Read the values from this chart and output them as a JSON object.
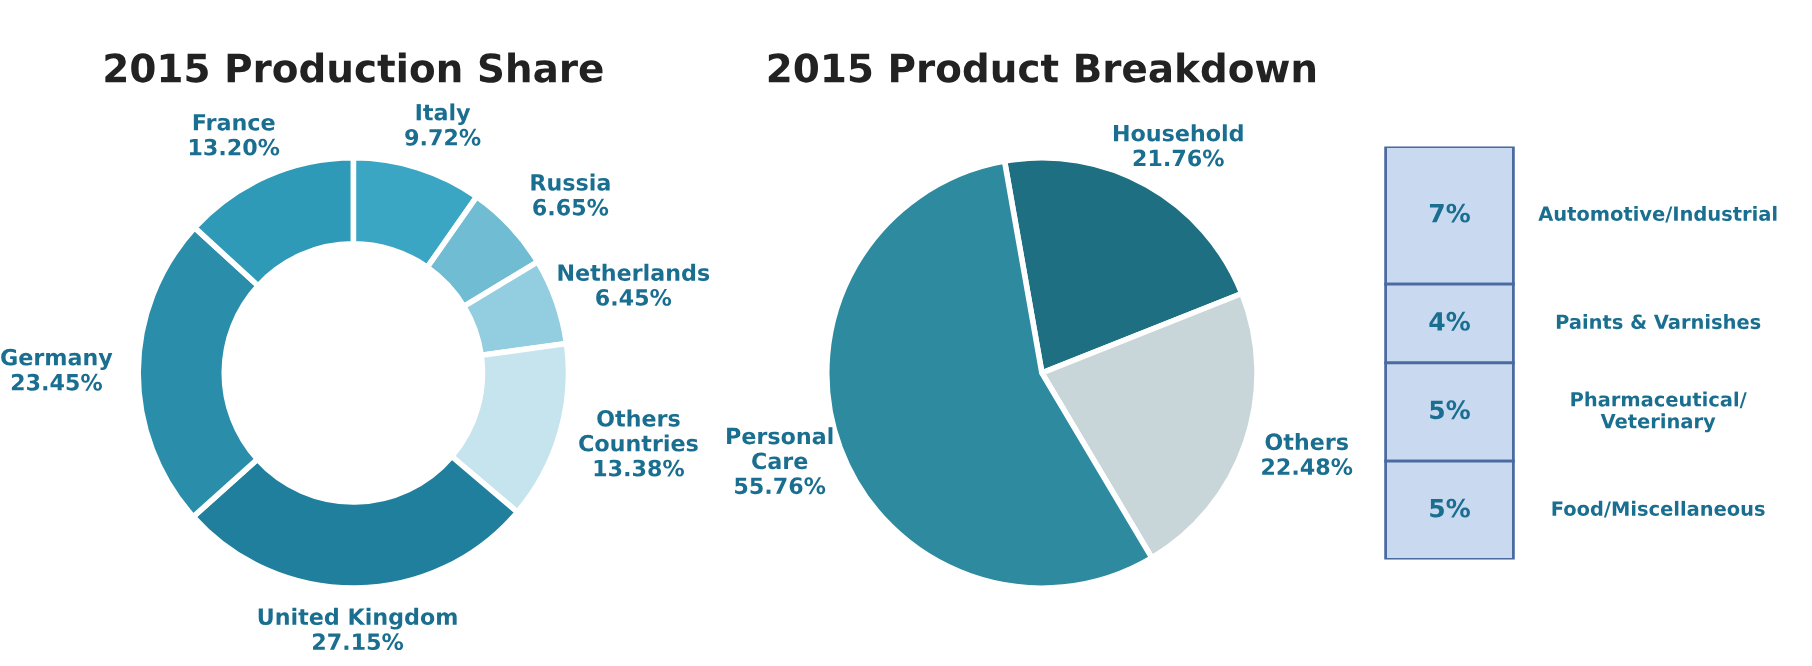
{
  "chart_data": [
    {
      "type": "donut",
      "title": "2015 Production Share",
      "categories": [
        "Italy",
        "Russia",
        "Netherlands",
        "Others\nCountries",
        "United Kingdom",
        "Germany",
        "France"
      ],
      "values": [
        9.72,
        6.65,
        6.45,
        13.38,
        27.15,
        23.45,
        13.2
      ],
      "value_labels": [
        "9.72%",
        "6.65%",
        "6.45%",
        "13.38%",
        "27.15%",
        "23.45%",
        "13.20%"
      ],
      "colors": [
        "#3aa6c4",
        "#6fbcd3",
        "#93cde0",
        "#c6e4ee",
        "#1f7f9c",
        "#2a8eab",
        "#2f9ab8"
      ]
    },
    {
      "type": "pie",
      "title": "2015 Product Breakdown",
      "categories": [
        "Household",
        "Others",
        "Personal\nCare"
      ],
      "values": [
        21.76,
        22.48,
        55.76
      ],
      "value_labels": [
        "21.76%",
        "22.48%",
        "55.76%"
      ],
      "colors": [
        "#1f6f82",
        "#c8d5d9",
        "#2d8a9f"
      ]
    },
    {
      "type": "other",
      "categories": [
        "Automotive/Industrial",
        "Paints & Varnishes",
        "Pharmaceutical/\nVeterinary",
        "Food/Miscellaneous"
      ],
      "values": [
        7,
        4,
        5,
        5
      ],
      "value_labels": [
        "7%",
        "4%",
        "5%",
        "5%"
      ],
      "colors": [
        "#c9d9f0",
        "#c9d9f0",
        "#c9d9f0",
        "#c9d9f0"
      ]
    }
  ]
}
